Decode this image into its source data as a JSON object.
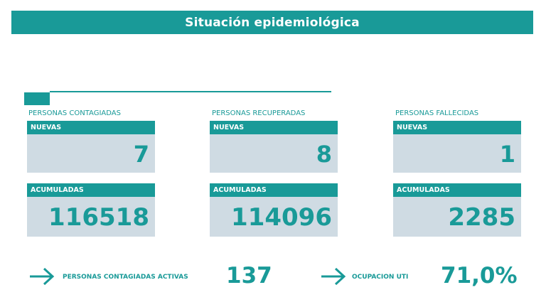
{
  "header": {
    "title": "Situación epidemiológica"
  },
  "groups": [
    {
      "label": "PERSONAS CONTAGIADAS",
      "new_label": "NUEVAS",
      "new_value": "7",
      "acc_label": "ACUMULADAS",
      "acc_value": "116518"
    },
    {
      "label": "PERSONAS RECUPERADAS",
      "new_label": "NUEVAS",
      "new_value": "8",
      "acc_label": "ACUMULADAS",
      "acc_value": "114096"
    },
    {
      "label": "PERSONAS FALLECIDAS",
      "new_label": "NUEVAS",
      "new_value": "1",
      "acc_label": "ACUMULADAS",
      "acc_value": "2285"
    }
  ],
  "stats": {
    "active": {
      "label": "PERSONAS CONTAGIADAS ACTIVAS",
      "value": "137",
      "icon": "arrow-right-icon"
    },
    "icu": {
      "label": "OCUPACION UTI",
      "value": "71,0%",
      "icon": "arrow-right-icon"
    }
  },
  "colors": {
    "accent": "#199a98",
    "card_bg": "#cfdbe3"
  }
}
